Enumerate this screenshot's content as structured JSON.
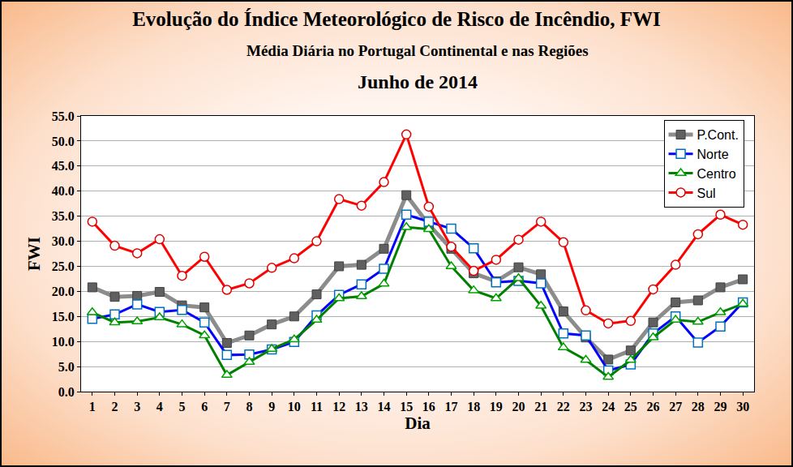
{
  "chart_data": {
    "type": "line",
    "title": "Evolução do Índice Meteorológico de Risco de Incêndio, FWI",
    "subtitle": [
      "Média Diária no Portugal Continental e nas Regiões",
      "Junho de 2014"
    ],
    "x_label": "Dia",
    "y_label": "FWI",
    "x": [
      1,
      2,
      3,
      4,
      5,
      6,
      7,
      8,
      9,
      10,
      11,
      12,
      13,
      14,
      15,
      16,
      17,
      18,
      19,
      20,
      21,
      22,
      23,
      24,
      25,
      26,
      27,
      28,
      29,
      30
    ],
    "xlim": [
      0.5,
      30.5
    ],
    "xticks": [
      1,
      2,
      3,
      4,
      5,
      6,
      7,
      8,
      9,
      10,
      11,
      12,
      13,
      14,
      15,
      16,
      17,
      18,
      19,
      20,
      21,
      22,
      23,
      24,
      25,
      26,
      27,
      28,
      29,
      30
    ],
    "ylim": [
      0,
      55
    ],
    "yticks": [
      {
        "value": 0,
        "label": "0.0"
      },
      {
        "value": 5,
        "label": "5.0"
      },
      {
        "value": 10,
        "label": "10.0"
      },
      {
        "value": 15,
        "label": "15.0"
      },
      {
        "value": 20,
        "label": "20.0"
      },
      {
        "value": 25,
        "label": "25.0"
      },
      {
        "value": 30,
        "label": "30.0"
      },
      {
        "value": 35,
        "label": "35.0"
      },
      {
        "value": 40,
        "label": "40.0"
      },
      {
        "value": 45,
        "label": "45.0"
      },
      {
        "value": 50,
        "label": "50.0"
      },
      {
        "value": 55,
        "label": "55.0"
      }
    ],
    "grid": true,
    "legend": "top-right",
    "series": [
      {
        "name": "P.Cont.",
        "color": "#8c8c8c",
        "marker": "square",
        "values": [
          20.8,
          18.9,
          19.1,
          19.9,
          17.2,
          16.8,
          9.7,
          11.2,
          13.4,
          15.0,
          19.4,
          25.0,
          25.3,
          28.5,
          39.2,
          33.3,
          28.5,
          23.6,
          22.0,
          24.8,
          23.4,
          16.0,
          10.8,
          6.4,
          8.2,
          13.8,
          17.8,
          18.2,
          20.8,
          22.4
        ]
      },
      {
        "name": "Norte",
        "color": "#0000ff",
        "marker": "square-open",
        "values": [
          14.5,
          15.4,
          17.4,
          15.9,
          16.3,
          13.8,
          7.3,
          7.4,
          8.4,
          9.9,
          15.2,
          19.3,
          21.4,
          24.5,
          35.3,
          33.9,
          32.5,
          28.6,
          21.8,
          22.1,
          21.6,
          11.6,
          11.2,
          4.2,
          5.4,
          11.6,
          15.0,
          9.8,
          13.0,
          17.8
        ]
      },
      {
        "name": "Centro",
        "color": "#008000",
        "marker": "triangle-up-open",
        "values": [
          15.8,
          13.8,
          14.0,
          14.8,
          13.4,
          11.2,
          3.3,
          5.9,
          8.5,
          10.4,
          14.3,
          18.6,
          19.0,
          21.5,
          32.8,
          32.4,
          25.0,
          20.2,
          18.6,
          22.6,
          17.1,
          8.8,
          6.3,
          2.9,
          6.3,
          10.8,
          14.3,
          13.9,
          15.8,
          17.5
        ]
      },
      {
        "name": "Sul",
        "color": "#ff0000",
        "marker": "circle-open",
        "values": [
          33.9,
          29.1,
          27.6,
          30.4,
          23.1,
          26.9,
          20.3,
          21.6,
          24.7,
          26.6,
          30.0,
          38.4,
          37.1,
          41.8,
          51.3,
          36.9,
          28.9,
          24.1,
          26.3,
          30.3,
          33.9,
          29.8,
          16.2,
          13.6,
          14.1,
          20.4,
          25.3,
          31.4,
          35.3,
          33.3
        ]
      }
    ]
  }
}
